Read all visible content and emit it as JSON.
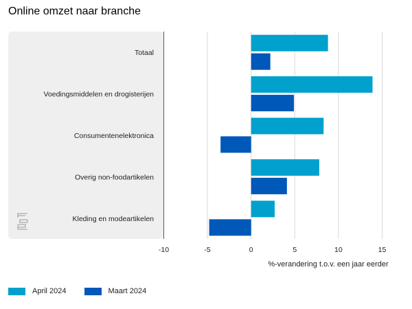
{
  "title": "Online omzet naar branche",
  "colors": {
    "april": "#00a1cd",
    "maart": "#0058b8",
    "panel": "#efefef",
    "grid": "#d8d8d8",
    "logo": "#b5b5b5"
  },
  "logo_icon": "cbs-logo-icon",
  "chart_data": {
    "type": "bar",
    "orientation": "horizontal",
    "categories": [
      "Totaal",
      "Voedingsmiddelen en drogisterijen",
      "Consumentenelektronica",
      "Overig non-foodartikelen",
      "Kleding en modeartikelen"
    ],
    "series": [
      {
        "name": "April 2024",
        "values": [
          8.8,
          13.9,
          8.3,
          7.8,
          2.7
        ]
      },
      {
        "name": "Maart 2024",
        "values": [
          2.2,
          4.9,
          -3.5,
          4.1,
          -4.8
        ]
      }
    ],
    "xlabel": "%-verandering t.o.v. een jaar eerder",
    "ylabel": "",
    "xlim": [
      -10,
      15
    ],
    "xticks": [
      -10,
      -5,
      0,
      5,
      10,
      15
    ],
    "grid": true,
    "legend": "bottom-left"
  }
}
